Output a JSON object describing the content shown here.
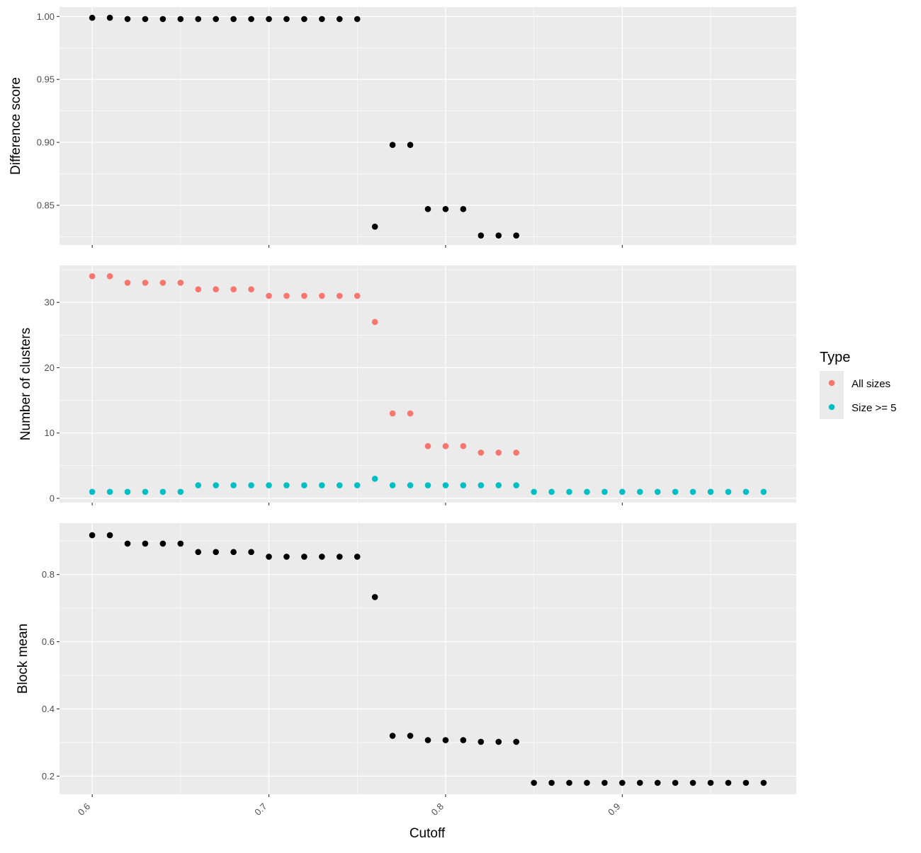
{
  "colors": {
    "panel_bg": "#EBEBEB",
    "grid": "#FFFFFF",
    "tick": "#333333",
    "black_points": "#000000",
    "all_sizes": "#F8766D",
    "size_ge_5": "#00BFC4"
  },
  "x_axis": {
    "label": "Cutoff",
    "ticks": [
      0.6,
      0.7,
      0.8,
      0.9
    ],
    "tick_labels": [
      "0.6",
      "0.7",
      "0.8",
      "0.9"
    ],
    "range": [
      0.5815,
      0.9985
    ]
  },
  "legend": {
    "title": "Type",
    "items": [
      {
        "label": "All sizes",
        "color": "#F8766D"
      },
      {
        "label": "Size >= 5",
        "color": "#00BFC4"
      }
    ]
  },
  "chart_data": [
    {
      "type": "scatter",
      "ylabel": "Difference score",
      "ylim": [
        0.8185,
        1.0075
      ],
      "y_ticks": [
        0.85,
        0.9,
        0.95,
        1.0
      ],
      "y_tick_labels": [
        "0.85",
        "0.90",
        "0.95",
        "1.00"
      ],
      "series": [
        {
          "color": "#000000",
          "x": [
            0.6,
            0.61,
            0.62,
            0.63,
            0.64,
            0.65,
            0.66,
            0.67,
            0.68,
            0.69,
            0.7,
            0.71,
            0.72,
            0.73,
            0.74,
            0.75,
            0.76,
            0.77,
            0.78,
            0.79,
            0.8,
            0.81,
            0.82,
            0.83,
            0.84
          ],
          "y": [
            0.999,
            0.999,
            0.998,
            0.998,
            0.998,
            0.998,
            0.998,
            0.998,
            0.998,
            0.998,
            0.998,
            0.998,
            0.998,
            0.998,
            0.998,
            0.998,
            0.833,
            0.898,
            0.898,
            0.847,
            0.847,
            0.847,
            0.826,
            0.826,
            0.826
          ]
        }
      ]
    },
    {
      "type": "scatter",
      "ylabel": "Number of clusters",
      "ylim": [
        -0.65,
        35.65
      ],
      "y_ticks": [
        0,
        10,
        20,
        30
      ],
      "y_tick_labels": [
        "0",
        "10",
        "20",
        "30"
      ],
      "series": [
        {
          "name": "All sizes",
          "color": "#F8766D",
          "x": [
            0.6,
            0.61,
            0.62,
            0.63,
            0.64,
            0.65,
            0.66,
            0.67,
            0.68,
            0.69,
            0.7,
            0.71,
            0.72,
            0.73,
            0.74,
            0.75,
            0.76,
            0.77,
            0.78,
            0.79,
            0.8,
            0.81,
            0.82,
            0.83,
            0.84
          ],
          "y": [
            34,
            34,
            33,
            33,
            33,
            33,
            32,
            32,
            32,
            32,
            31,
            31,
            31,
            31,
            31,
            31,
            27,
            13,
            13,
            8,
            8,
            8,
            7,
            7,
            7
          ]
        },
        {
          "name": "Size >= 5",
          "color": "#00BFC4",
          "x": [
            0.6,
            0.61,
            0.62,
            0.63,
            0.64,
            0.65,
            0.66,
            0.67,
            0.68,
            0.69,
            0.7,
            0.71,
            0.72,
            0.73,
            0.74,
            0.75,
            0.76,
            0.77,
            0.78,
            0.79,
            0.8,
            0.81,
            0.82,
            0.83,
            0.84,
            0.85,
            0.86,
            0.87,
            0.88,
            0.89,
            0.9,
            0.91,
            0.92,
            0.93,
            0.94,
            0.95,
            0.96,
            0.97,
            0.98
          ],
          "y": [
            1,
            1,
            1,
            1,
            1,
            1,
            2,
            2,
            2,
            2,
            2,
            2,
            2,
            2,
            2,
            2,
            3,
            2,
            2,
            2,
            2,
            2,
            2,
            2,
            2,
            1,
            1,
            1,
            1,
            1,
            1,
            1,
            1,
            1,
            1,
            1,
            1,
            1,
            1
          ]
        }
      ]
    },
    {
      "type": "scatter",
      "ylabel": "Block mean",
      "xlabel": "Cutoff",
      "ylim": [
        0.146,
        0.953
      ],
      "y_ticks": [
        0.2,
        0.4,
        0.6,
        0.8
      ],
      "y_tick_labels": [
        "0.2",
        "0.4",
        "0.6",
        "0.8"
      ],
      "series": [
        {
          "color": "#000000",
          "x": [
            0.6,
            0.61,
            0.62,
            0.63,
            0.64,
            0.65,
            0.66,
            0.67,
            0.68,
            0.69,
            0.7,
            0.71,
            0.72,
            0.73,
            0.74,
            0.75,
            0.76,
            0.77,
            0.78,
            0.79,
            0.8,
            0.81,
            0.82,
            0.83,
            0.84,
            0.85,
            0.86,
            0.87,
            0.88,
            0.89,
            0.9,
            0.91,
            0.92,
            0.93,
            0.94,
            0.95,
            0.96,
            0.97,
            0.98
          ],
          "y": [
            0.917,
            0.917,
            0.892,
            0.892,
            0.892,
            0.892,
            0.867,
            0.867,
            0.867,
            0.867,
            0.853,
            0.853,
            0.853,
            0.853,
            0.853,
            0.853,
            0.733,
            0.32,
            0.32,
            0.307,
            0.307,
            0.307,
            0.302,
            0.302,
            0.302,
            0.18,
            0.18,
            0.18,
            0.18,
            0.18,
            0.18,
            0.18,
            0.18,
            0.18,
            0.18,
            0.18,
            0.18,
            0.18,
            0.18
          ]
        }
      ]
    }
  ]
}
